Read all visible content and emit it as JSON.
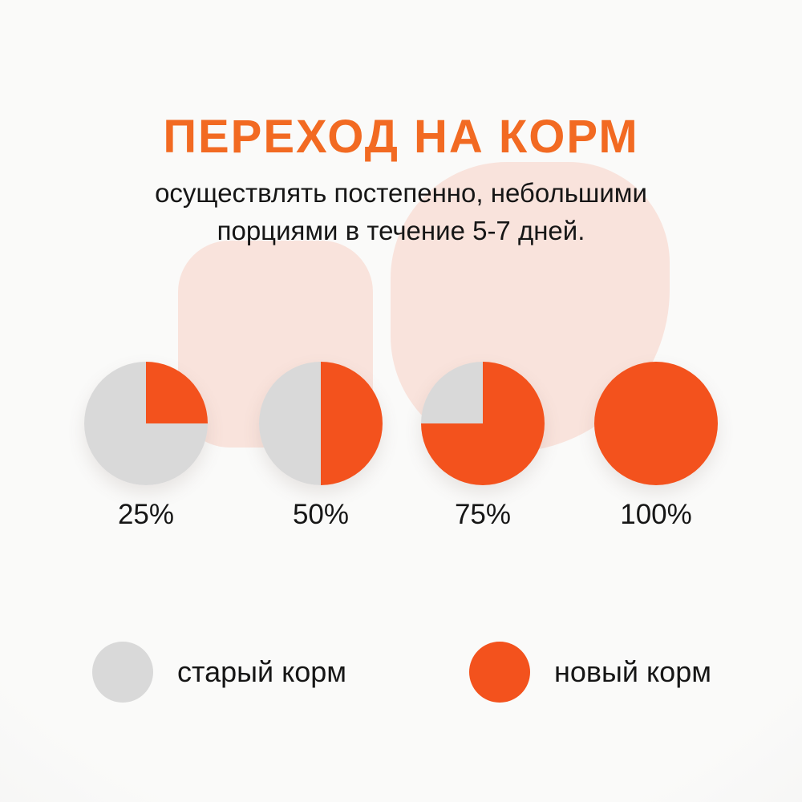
{
  "page": {
    "title": "ПЕРЕХОД НА КОРМ",
    "subtitle_line1": "осуществлять постепенно, небольшими",
    "subtitle_line2": "порциями в течение 5-7 дней."
  },
  "colors": {
    "title_orange": "#f26a22",
    "new_food_orange": "#f3521d",
    "old_food_gray": "#d9d9d9",
    "decor_pink": "#f9e3dc",
    "text_dark": "#161616",
    "background": "#fafaf9"
  },
  "chart_data": {
    "type": "pie",
    "title": "ПЕРЕХОД НА КОРМ",
    "subtitle": "осуществлять постепенно, небольшими порциями в течение 5-7 дней.",
    "series_names": [
      "новый корм",
      "старый корм"
    ],
    "pies": [
      {
        "label": "25%",
        "new_food_pct": 25,
        "old_food_pct": 75
      },
      {
        "label": "50%",
        "new_food_pct": 50,
        "old_food_pct": 50
      },
      {
        "label": "75%",
        "new_food_pct": 75,
        "old_food_pct": 25
      },
      {
        "label": "100%",
        "new_food_pct": 100,
        "old_food_pct": 0
      }
    ],
    "legend": [
      {
        "label": "старый корм",
        "color": "#d9d9d9"
      },
      {
        "label": "новый корм",
        "color": "#f3521d"
      }
    ],
    "legend_position": "bottom"
  }
}
